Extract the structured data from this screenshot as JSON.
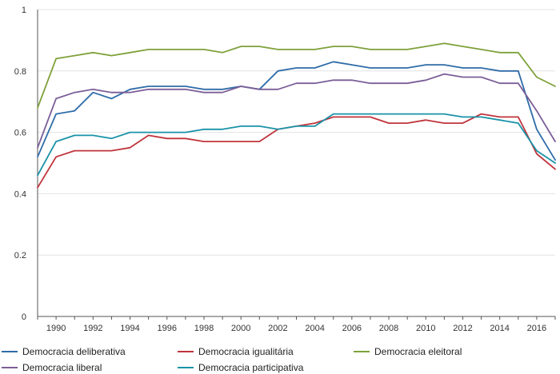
{
  "colors": {
    "deliberativa": "#2f6ca8",
    "igualitaria": "#c0343c",
    "eleitoral": "#7ea13a",
    "liberal": "#7b5e98",
    "participativa": "#1a93a8",
    "grid": "#e3e3e3",
    "axis": "#555555"
  },
  "chart_data": {
    "type": "line",
    "title": "",
    "xlabel": "",
    "ylabel": "",
    "xlim": [
      1989,
      2017
    ],
    "ylim": [
      0,
      1
    ],
    "x_ticks": [
      "1990",
      "1992",
      "1994",
      "1996",
      "1998",
      "2000",
      "2002",
      "2004",
      "2006",
      "2008",
      "2010",
      "2012",
      "2014",
      "2016"
    ],
    "y_ticks": [
      "0",
      "0.2",
      "0.4",
      "0.6",
      "0.8",
      "1"
    ],
    "grid": "horizontal",
    "legend_position": "bottom",
    "x": [
      1989,
      1990,
      1991,
      1992,
      1993,
      1994,
      1995,
      1996,
      1997,
      1998,
      1999,
      2000,
      2001,
      2002,
      2003,
      2004,
      2005,
      2006,
      2007,
      2008,
      2009,
      2010,
      2011,
      2012,
      2013,
      2014,
      2015,
      2016,
      2017
    ],
    "series": [
      {
        "name": "Democracia deliberativa",
        "color_key": "deliberativa",
        "values": [
          0.52,
          0.66,
          0.67,
          0.73,
          0.71,
          0.74,
          0.75,
          0.75,
          0.75,
          0.74,
          0.74,
          0.75,
          0.74,
          0.8,
          0.81,
          0.81,
          0.83,
          0.82,
          0.81,
          0.81,
          0.81,
          0.82,
          0.82,
          0.81,
          0.81,
          0.8,
          0.8,
          0.61,
          0.51
        ]
      },
      {
        "name": "Democracia igualitária",
        "color_key": "igualitaria",
        "values": [
          0.42,
          0.52,
          0.54,
          0.54,
          0.54,
          0.55,
          0.59,
          0.58,
          0.58,
          0.57,
          0.57,
          0.57,
          0.57,
          0.61,
          0.62,
          0.63,
          0.65,
          0.65,
          0.65,
          0.63,
          0.63,
          0.64,
          0.63,
          0.63,
          0.66,
          0.65,
          0.65,
          0.53,
          0.48
        ]
      },
      {
        "name": "Democracia eleitoral",
        "color_key": "eleitoral",
        "values": [
          0.68,
          0.84,
          0.85,
          0.86,
          0.85,
          0.86,
          0.87,
          0.87,
          0.87,
          0.87,
          0.86,
          0.88,
          0.88,
          0.87,
          0.87,
          0.87,
          0.88,
          0.88,
          0.87,
          0.87,
          0.87,
          0.88,
          0.89,
          0.88,
          0.87,
          0.86,
          0.86,
          0.78,
          0.75
        ]
      },
      {
        "name": "Democracia liberal",
        "color_key": "liberal",
        "values": [
          0.55,
          0.71,
          0.73,
          0.74,
          0.73,
          0.73,
          0.74,
          0.74,
          0.74,
          0.73,
          0.73,
          0.75,
          0.74,
          0.74,
          0.76,
          0.76,
          0.77,
          0.77,
          0.76,
          0.76,
          0.76,
          0.77,
          0.79,
          0.78,
          0.78,
          0.76,
          0.76,
          0.67,
          0.57
        ]
      },
      {
        "name": "Democracia participativa",
        "color_key": "participativa",
        "values": [
          0.46,
          0.57,
          0.59,
          0.59,
          0.58,
          0.6,
          0.6,
          0.6,
          0.6,
          0.61,
          0.61,
          0.62,
          0.62,
          0.61,
          0.62,
          0.62,
          0.66,
          0.66,
          0.66,
          0.66,
          0.66,
          0.66,
          0.66,
          0.65,
          0.65,
          0.64,
          0.63,
          0.54,
          0.5
        ]
      }
    ]
  }
}
